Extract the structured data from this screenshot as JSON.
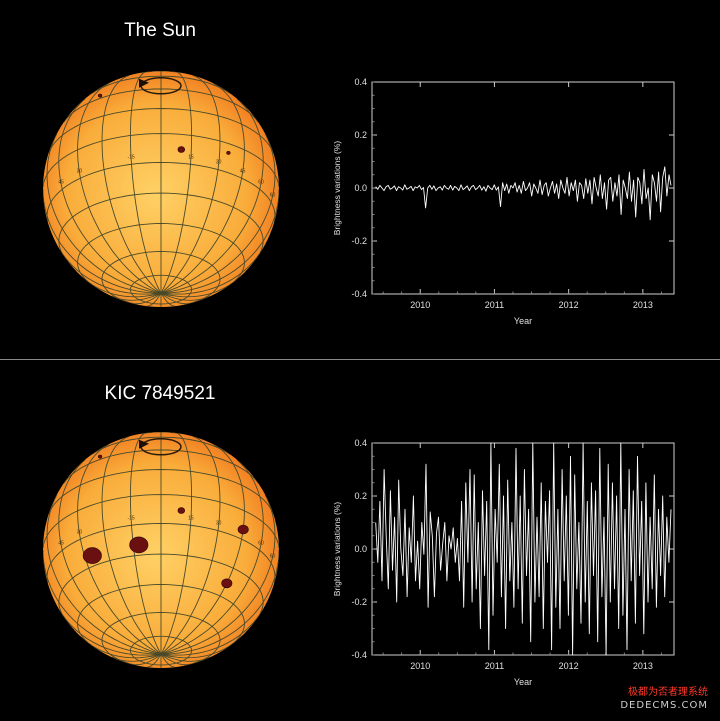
{
  "watermark": {
    "line1": "极都为否者理系统",
    "line2": "DEDECMS.COM"
  },
  "colors": {
    "background": "#000000",
    "divider": "#8a8a8a",
    "sun_core": "#ffd166",
    "sun_limb": "#f0781e",
    "grid": "#4a4a2a",
    "spot": "#6b1010",
    "plot_line": "#ffffff"
  },
  "panels": [
    {
      "title": "The Sun",
      "globe": {
        "grid_labels": [
          "45",
          "30",
          "-15",
          "15",
          "30",
          "45",
          "60",
          "60"
        ],
        "spots": [
          {
            "lon": 10,
            "lat": -8,
            "size": "small"
          },
          {
            "lon": 35,
            "lat": -5,
            "size": "tiny"
          },
          {
            "lon": -38,
            "lat": 33,
            "size": "tiny"
          }
        ]
      }
    },
    {
      "title": "KIC 7849521",
      "globe": {
        "grid_labels": [
          "45",
          "30",
          "-15",
          "15",
          "30",
          "45",
          "60",
          "60"
        ],
        "spots": [
          {
            "lon": -40,
            "lat": -25,
            "size": "large"
          },
          {
            "lon": -12,
            "lat": -25,
            "size": "large"
          },
          {
            "lon": 10,
            "lat": -8,
            "size": "small"
          },
          {
            "lon": 45,
            "lat": -10,
            "size": "medium"
          },
          {
            "lon": 45,
            "lat": -38,
            "size": "medium"
          },
          {
            "lon": -38,
            "lat": 33,
            "size": "tiny"
          }
        ]
      }
    }
  ],
  "chart_data": [
    {
      "type": "line",
      "title": "",
      "xlabel": "Year",
      "ylabel": "Brightness variations (%)",
      "xlim": [
        2009.35,
        2013.42
      ],
      "ylim": [
        -0.4,
        0.4
      ],
      "x_ticks": [
        2010,
        2011,
        2012,
        2013
      ],
      "y_ticks": [
        -0.4,
        -0.2,
        0.0,
        0.2,
        0.4
      ],
      "y_tick_labels": [
        "-0.4",
        "-0.2",
        "0.0",
        "0.2",
        "0.4"
      ],
      "grid": false,
      "series": [
        {
          "x_start": 2009.4,
          "x_end": 2013.38,
          "values": [
            0.005,
            -0.005,
            0.01,
            0.0,
            -0.01,
            0.005,
            0.01,
            -0.005,
            0.0,
            0.008,
            -0.01,
            0.005,
            0.0,
            -0.008,
            0.012,
            -0.005,
            0.0,
            0.006,
            -0.01,
            0.004,
            0.0,
            0.01,
            -0.006,
            0.002,
            -0.075,
            0.0,
            0.01,
            -0.005,
            0.008,
            -0.01,
            0.0,
            0.005,
            -0.008,
            0.01,
            0.0,
            -0.005,
            0.01,
            -0.008,
            0.006,
            0.0,
            -0.01,
            0.012,
            -0.006,
            0.0,
            0.008,
            -0.01,
            0.004,
            0.01,
            -0.006,
            0.0,
            0.01,
            -0.008,
            0.005,
            -0.012,
            0.01,
            0.0,
            -0.006,
            0.012,
            -0.008,
            0.004,
            -0.07,
            0.02,
            -0.01,
            0.015,
            -0.02,
            0.01,
            0.0,
            0.02,
            -0.015,
            0.01,
            -0.02,
            0.025,
            -0.01,
            0.0,
            0.02,
            -0.03,
            0.015,
            0.0,
            -0.02,
            0.03,
            -0.025,
            0.01,
            0.02,
            -0.03,
            0.0,
            0.025,
            -0.02,
            0.015,
            -0.04,
            0.03,
            0.0,
            -0.02,
            0.04,
            -0.03,
            0.02,
            -0.01,
            0.03,
            -0.05,
            0.02,
            0.01,
            -0.04,
            0.035,
            -0.02,
            0.03,
            -0.06,
            0.04,
            0.0,
            -0.03,
            0.05,
            -0.04,
            0.02,
            -0.08,
            0.03,
            0.04,
            -0.05,
            0.02,
            -0.03,
            0.05,
            -0.1,
            0.03,
            0.0,
            -0.04,
            0.06,
            -0.05,
            0.03,
            -0.11,
            0.04,
            0.02,
            -0.06,
            0.07,
            -0.04,
            0.0,
            -0.12,
            0.05,
            0.02,
            -0.05,
            0.06,
            -0.09,
            0.04,
            0.08,
            -0.03,
            0.05,
            0.01
          ]
        }
      ]
    },
    {
      "type": "line",
      "title": "",
      "xlabel": "Year",
      "ylabel": "Brightness variations (%)",
      "xlim": [
        2009.35,
        2013.42
      ],
      "ylim": [
        -0.4,
        0.4
      ],
      "x_ticks": [
        2010,
        2011,
        2012,
        2013
      ],
      "y_ticks": [
        -0.4,
        -0.2,
        0.0,
        0.2,
        0.4
      ],
      "y_tick_labels": [
        "-0.4",
        "-0.2",
        "0.0",
        "0.2",
        "0.4"
      ],
      "grid": false,
      "series": [
        {
          "x_start": 2009.4,
          "x_end": 2013.38,
          "values": [
            0.1,
            -0.05,
            0.18,
            -0.12,
            0.3,
            0.05,
            -0.15,
            0.22,
            -0.08,
            0.12,
            -0.2,
            0.26,
            0.0,
            -0.1,
            0.15,
            -0.18,
            0.08,
            -0.05,
            0.2,
            -0.12,
            0.03,
            -0.15,
            0.1,
            -0.02,
            0.32,
            -0.22,
            0.14,
            0.05,
            -0.18,
            0.06,
            0.12,
            -0.08,
            0.02,
            0.1,
            -0.12,
            0.05,
            0.0,
            0.08,
            -0.05,
            0.04,
            -0.12,
            0.18,
            -0.22,
            0.25,
            -0.05,
            0.3,
            -0.2,
            0.28,
            -0.15,
            0.1,
            -0.3,
            0.22,
            -0.1,
            0.18,
            -0.38,
            0.4,
            -0.25,
            0.15,
            -0.05,
            0.32,
            -0.18,
            0.2,
            -0.3,
            0.26,
            -0.12,
            0.1,
            -0.22,
            0.38,
            -0.15,
            0.2,
            -0.28,
            0.3,
            -0.1,
            0.15,
            -0.35,
            0.4,
            -0.2,
            0.12,
            -0.18,
            0.25,
            -0.3,
            0.18,
            -0.05,
            0.22,
            -0.38,
            0.4,
            -0.22,
            0.15,
            -0.3,
            0.3,
            -0.12,
            0.2,
            -0.25,
            0.35,
            -0.4,
            0.28,
            -0.15,
            0.1,
            -0.28,
            0.4,
            -0.2,
            0.18,
            -0.32,
            0.25,
            -0.1,
            0.22,
            -0.35,
            0.38,
            -0.18,
            0.12,
            -0.4,
            0.32,
            -0.2,
            0.25,
            -0.15,
            0.2,
            -0.3,
            0.4,
            -0.25,
            0.15,
            -0.38,
            0.3,
            -0.12,
            0.22,
            -0.28,
            0.35,
            -0.1,
            0.18,
            -0.32,
            0.25,
            -0.2,
            0.12,
            -0.15,
            0.28,
            -0.22,
            0.15,
            -0.1,
            0.2,
            -0.18,
            0.12,
            -0.05,
            0.15
          ]
        }
      ]
    }
  ]
}
